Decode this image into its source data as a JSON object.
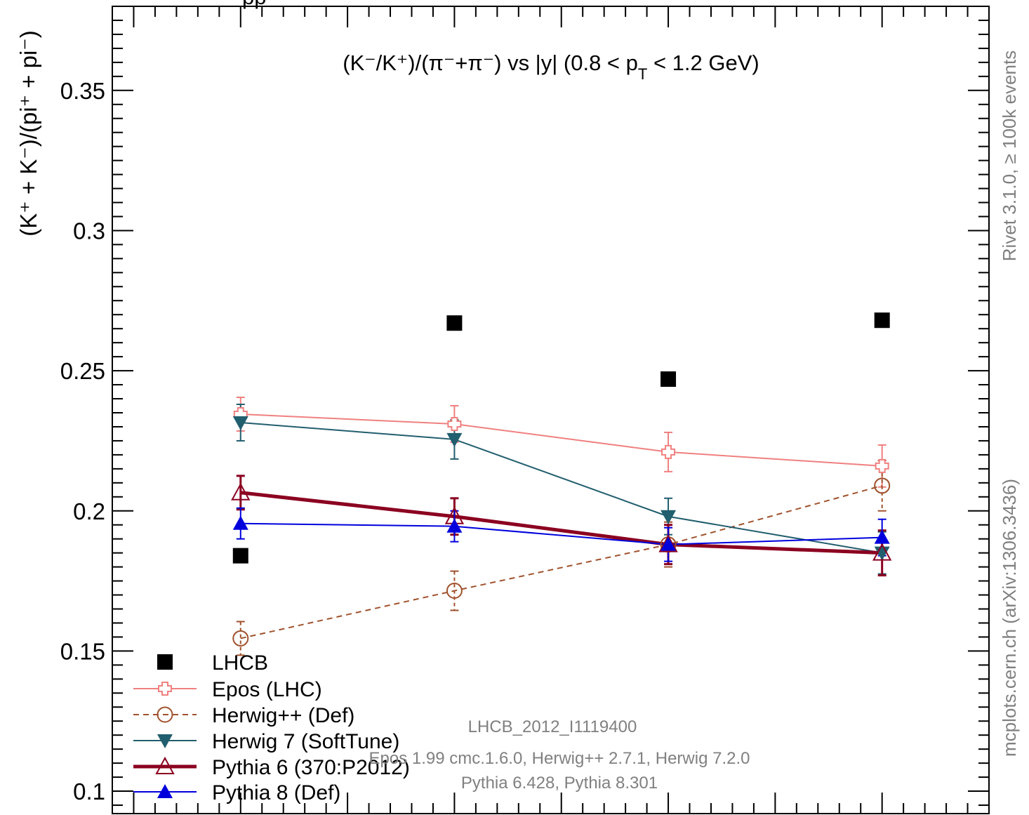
{
  "chart_data": {
    "type": "line",
    "title": "(K⁻/K⁺)/(π⁻+π⁻) vs |y| (0.8 < pT < 1.2 GeV)",
    "title_parts": {
      "main": "(K⁻/K⁺)/(π⁻+π⁻) vs |y| (0.8 < p",
      "sub": "T",
      "tail": " < 1.2 GeV)"
    },
    "ylabel": "(K⁺ + K⁻)/(pi⁺ + pi⁻)",
    "xlabel": "",
    "ylim": [
      0.092,
      0.38
    ],
    "y_ticks": [
      0.1,
      0.15,
      0.2,
      0.25,
      0.3,
      0.35
    ],
    "y_tick_labels": [
      "0.1",
      "0.15",
      "0.2",
      "0.25",
      "0.3",
      "0.35"
    ],
    "x": [
      1,
      2,
      3,
      4
    ],
    "xlim": [
      0.4,
      4.5
    ],
    "grid": false,
    "legend_position": "bottom-left",
    "series": [
      {
        "name": "LHCB",
        "color": "#000000",
        "marker": "square",
        "line": "none",
        "values": [
          0.184,
          0.267,
          0.247,
          0.268
        ],
        "errors": [
          0,
          0,
          0,
          0
        ]
      },
      {
        "name": "Epos (LHC)",
        "color": "#f08080",
        "marker": "open-cross",
        "line": "solid",
        "values": [
          0.2345,
          0.231,
          0.221,
          0.216
        ],
        "errors": [
          0.006,
          0.0065,
          0.007,
          0.0075
        ]
      },
      {
        "name": "Herwig++ (Def)",
        "color": "#a0522d",
        "marker": "open-circle",
        "line": "dashed",
        "values": [
          0.1545,
          0.1715,
          0.188,
          0.209
        ],
        "errors": [
          0.006,
          0.007,
          0.008,
          0.009
        ]
      },
      {
        "name": "Herwig 7 (SoftTune)",
        "color": "#215e6e",
        "marker": "triangle-down",
        "line": "solid",
        "values": [
          0.2315,
          0.2255,
          0.198,
          0.185
        ],
        "errors": [
          0.0065,
          0.007,
          0.0065,
          0.0075
        ]
      },
      {
        "name": "Pythia 6 (370:P2012)",
        "color": "#8b0020",
        "marker": "open-triangle-up",
        "line": "solid-thick",
        "values": [
          0.2065,
          0.198,
          0.188,
          0.185
        ],
        "errors": [
          0.006,
          0.0065,
          0.007,
          0.008
        ]
      },
      {
        "name": "Pythia 8 (Def)",
        "color": "#0000dd",
        "marker": "triangle-up",
        "line": "solid",
        "values": [
          0.1955,
          0.1945,
          0.188,
          0.1905
        ],
        "errors": [
          0.0055,
          0.0055,
          0.006,
          0.0065
        ]
      }
    ],
    "annotations": {
      "analysis": "LHCB_2012_I1119400",
      "generators_line1": "Epos 1.99 cmc.1.6.0, Herwig++ 2.7.1, Herwig 7.2.0",
      "generators_line2": "Pythia 6.428, Pythia 8.301",
      "right_top": "Rivet 3.1.0, ≥ 100k events",
      "right_bottom": "mcplots.cern.ch (arXiv:1306.3436)",
      "top_left_partial": "pp"
    }
  }
}
